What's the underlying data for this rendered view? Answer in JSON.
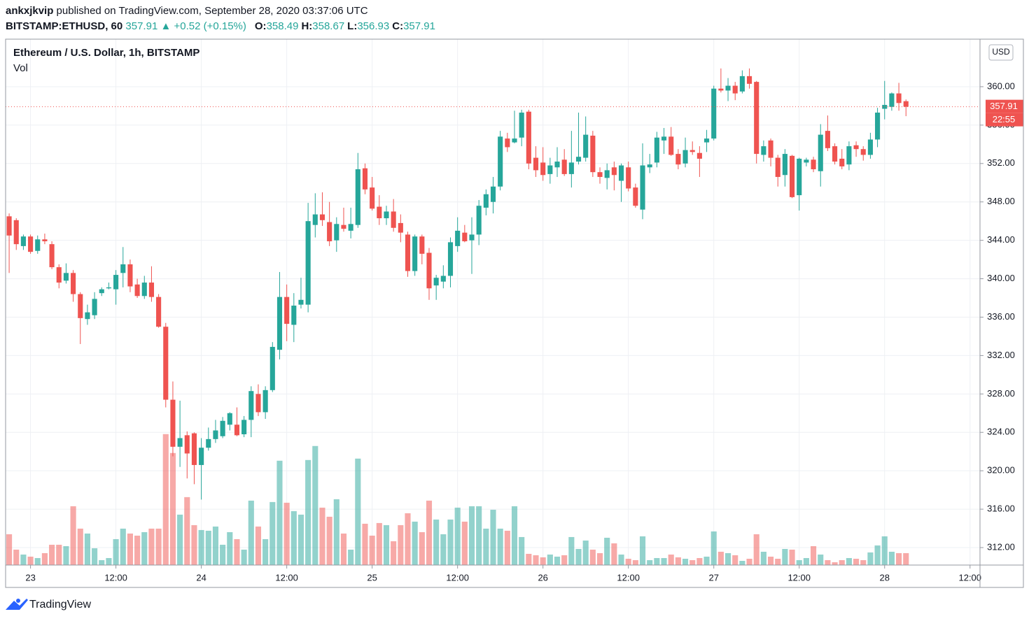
{
  "header": {
    "author": "ankxjkvip",
    "published": "published on TradingView.com, September 28, 2020 03:37:06 UTC",
    "symbol": "BITSTAMP:ETHUSD, 60",
    "last": "357.91",
    "change": "▲ +0.52 (+0.15%)",
    "ohlc": [
      {
        "label": "O:",
        "value": "358.49"
      },
      {
        "label": "H:",
        "value": "358.67"
      },
      {
        "label": "L:",
        "value": "356.93"
      },
      {
        "label": "C:",
        "value": "357.91"
      }
    ]
  },
  "chart_data": {
    "type": "candlestick",
    "title": "Ethereum / U.S. Dollar, 1h, BITSTAMP",
    "volume_label": "Vol",
    "currency": "USD",
    "up_color": "#26a69a",
    "down_color": "#ef5350",
    "grid": true,
    "last_price": 357.91,
    "countdown": "22:55",
    "xlim": [
      -0.5,
      136.4
    ],
    "ylim": [
      310.18,
      364.95
    ],
    "xticks": [
      {
        "value": 3,
        "label": "23"
      },
      {
        "value": 15,
        "label": "12:00"
      },
      {
        "value": 27,
        "label": "24"
      },
      {
        "value": 39,
        "label": "12:00"
      },
      {
        "value": 51,
        "label": "25"
      },
      {
        "value": 63,
        "label": "12:00"
      },
      {
        "value": 75,
        "label": "26"
      },
      {
        "value": 87,
        "label": "12:00"
      },
      {
        "value": 99,
        "label": "27"
      },
      {
        "value": 111,
        "label": "12:00"
      },
      {
        "value": 123,
        "label": "28"
      },
      {
        "value": 135,
        "label": "12:00"
      }
    ],
    "yticks": [
      {
        "value": 312,
        "label": "312.00"
      },
      {
        "value": 316,
        "label": "316.00"
      },
      {
        "value": 320,
        "label": "320.00"
      },
      {
        "value": 324,
        "label": "324.00"
      },
      {
        "value": 328,
        "label": "328.00"
      },
      {
        "value": 332,
        "label": "332.00"
      },
      {
        "value": 336,
        "label": "336.00"
      },
      {
        "value": 340,
        "label": "340.00"
      },
      {
        "value": 344,
        "label": "344.00"
      },
      {
        "value": 348,
        "label": "348.00"
      },
      {
        "value": 352,
        "label": "352.00"
      },
      {
        "value": 356,
        "label": "356.00"
      },
      {
        "value": 360,
        "label": "360.00"
      }
    ],
    "open": [
      346.5,
      346.1,
      343.4,
      344.4,
      342.9,
      344.1,
      343.6,
      341.2,
      339.8,
      340.6,
      338.4,
      335.8,
      336.2,
      338.5,
      339.0,
      338.9,
      340.6,
      341.5,
      339.4,
      338.2,
      339.6,
      338.1,
      335.0,
      327.4,
      322.5,
      323.7,
      323.9,
      320.6,
      322.4,
      323.3,
      323.6,
      324.8,
      324.8,
      323.8,
      325.3,
      328.0,
      326.1,
      328.4,
      332.6,
      338.1,
      335.2,
      337.3,
      337.3,
      345.6,
      346.7,
      345.9,
      344.0,
      345.6,
      345.0,
      345.6,
      351.5,
      349.5,
      347.5,
      346.3,
      347.0,
      345.8,
      344.6,
      340.8,
      344.4,
      342.7,
      339.3,
      339.7,
      340.3,
      343.4,
      344.8,
      344.0,
      344.6,
      347.4,
      348.0,
      349.6,
      354.6,
      354.2,
      354.7,
      357.4,
      352.6,
      352.1,
      350.9,
      351.6,
      352.4,
      350.9,
      352.2,
      352.6,
      354.9,
      351.1,
      350.5,
      351.6,
      350.2,
      351.6,
      349.5,
      347.2,
      351.6,
      352.1,
      354.4,
      354.8,
      353.0,
      352.0,
      353.4,
      353.1,
      354.2,
      354.6,
      359.8,
      359.6,
      360.1,
      359.5,
      361.1,
      360.5,
      352.9,
      354.4,
      352.6,
      350.8,
      352.8,
      348.7,
      352.1,
      352.4,
      351.2,
      355.4,
      353.8,
      352.5,
      351.9,
      353.9,
      353.5,
      352.9,
      354.5,
      357.7,
      357.9,
      359.3,
      358.49
    ],
    "high": [
      346.8,
      346.3,
      344.6,
      344.6,
      344.5,
      344.7,
      343.9,
      341.5,
      341.6,
      340.9,
      338.6,
      337.3,
      338.6,
      339.1,
      339.6,
      340.9,
      343.3,
      342.0,
      340.0,
      340.3,
      341.3,
      338.4,
      335.4,
      329.3,
      327.3,
      324.1,
      324.0,
      323.4,
      324.5,
      325.3,
      325.6,
      326.1,
      326.6,
      325.7,
      328.8,
      329.0,
      328.8,
      333.4,
      340.7,
      339.4,
      338.5,
      340.1,
      347.9,
      348.9,
      349.0,
      348.0,
      346.4,
      347.4,
      347.4,
      353.1,
      352.0,
      350.6,
      348.7,
      347.6,
      348.3,
      346.7,
      344.9,
      344.6,
      344.6,
      343.2,
      340.4,
      341.4,
      344.3,
      346.4,
      345.6,
      346.4,
      348.2,
      349.3,
      350.6,
      355.4,
      355.2,
      357.5,
      357.6,
      357.6,
      353.8,
      353.7,
      352.6,
      353.7,
      353.5,
      355.4,
      357.3,
      356.9,
      355.4,
      351.6,
      352.0,
      352.2,
      352.0,
      352.2,
      349.9,
      354.1,
      353.0,
      355.3,
      355.7,
      355.8,
      353.5,
      354.7,
      354.3,
      353.8,
      355.5,
      360.1,
      361.9,
      360.9,
      360.5,
      361.7,
      361.9,
      360.6,
      354.4,
      354.6,
      352.9,
      353.5,
      352.9,
      352.6,
      352.6,
      352.7,
      356.1,
      357.0,
      354.1,
      353.5,
      354.3,
      354.3,
      353.8,
      355.2,
      357.8,
      360.6,
      359.4,
      360.4,
      358.67
    ],
    "low": [
      340.6,
      343.0,
      343.0,
      342.6,
      342.6,
      343.6,
      341.0,
      339.0,
      339.5,
      337.6,
      333.2,
      335.2,
      335.8,
      338.2,
      338.9,
      337.3,
      339.1,
      338.6,
      338.0,
      337.9,
      337.6,
      334.9,
      326.6,
      321.5,
      320.4,
      319.2,
      318.6,
      317.0,
      322.1,
      322.9,
      323.4,
      324.2,
      323.6,
      323.5,
      323.5,
      325.7,
      325.4,
      328.2,
      331.6,
      333.5,
      333.4,
      336.9,
      336.5,
      344.3,
      345.5,
      343.4,
      342.8,
      344.9,
      344.2,
      345.3,
      348.8,
      347.1,
      345.6,
      345.6,
      344.9,
      343.8,
      340.2,
      340.3,
      341.5,
      337.8,
      337.8,
      339.0,
      339.1,
      342.8,
      343.8,
      340.5,
      343.5,
      346.6,
      346.8,
      349.2,
      353.2,
      354.1,
      353.8,
      351.4,
      350.6,
      350.2,
      349.9,
      350.6,
      350.7,
      349.5,
      351.9,
      352.2,
      350.6,
      349.9,
      349.3,
      349.2,
      348.0,
      349.1,
      347.4,
      346.2,
      351.0,
      351.6,
      353.0,
      352.8,
      351.4,
      351.6,
      352.9,
      350.6,
      353.2,
      354.4,
      359.4,
      358.5,
      358.6,
      359.3,
      359.8,
      352.0,
      352.2,
      351.7,
      349.6,
      349.6,
      348.4,
      347.1,
      351.7,
      351.1,
      349.6,
      353.3,
      351.9,
      351.4,
      351.3,
      352.7,
      352.3,
      352.5,
      353.7,
      356.6,
      357.5,
      357.5,
      356.93
    ],
    "close": [
      344.5,
      343.6,
      344.4,
      342.8,
      344.1,
      343.9,
      341.2,
      339.6,
      340.6,
      338.4,
      335.9,
      336.5,
      337.9,
      338.9,
      339.1,
      340.4,
      341.5,
      339.2,
      338.2,
      339.6,
      338.1,
      335.0,
      327.4,
      322.5,
      323.4,
      321.8,
      320.6,
      322.4,
      323.3,
      324.2,
      325.2,
      326.0,
      323.7,
      325.3,
      328.3,
      326.1,
      328.4,
      332.9,
      338.1,
      335.3,
      337.2,
      337.8,
      346.0,
      346.7,
      346.1,
      343.9,
      345.7,
      345.2,
      345.7,
      351.4,
      349.3,
      347.3,
      346.3,
      347.0,
      345.3,
      344.8,
      340.8,
      344.4,
      342.6,
      339.0,
      340.1,
      340.3,
      343.8,
      345.0,
      343.9,
      344.6,
      347.6,
      348.8,
      349.6,
      354.8,
      353.7,
      354.6,
      357.3,
      352.0,
      351.3,
      350.8,
      351.8,
      352.2,
      350.9,
      352.1,
      352.7,
      355.0,
      351.1,
      350.6,
      351.3,
      350.8,
      351.8,
      349.4,
      347.6,
      351.8,
      351.9,
      354.7,
      354.8,
      352.9,
      351.9,
      353.4,
      353.2,
      352.5,
      354.6,
      359.8,
      359.6,
      360.1,
      359.3,
      361.1,
      360.3,
      353.0,
      353.8,
      352.6,
      350.6,
      353.0,
      348.5,
      352.5,
      352.4,
      351.4,
      355.0,
      353.6,
      352.2,
      351.7,
      353.8,
      353.5,
      352.9,
      354.5,
      357.3,
      358.1,
      359.3,
      358.3,
      357.91
    ],
    "volume": [
      44,
      22,
      15,
      12,
      10,
      17,
      29,
      29,
      27,
      84,
      52,
      45,
      24,
      7,
      10,
      37,
      52,
      45,
      42,
      47,
      52,
      52,
      187,
      160,
      72,
      97,
      57,
      50,
      49,
      55,
      29,
      47,
      37,
      22,
      92,
      55,
      37,
      90,
      149,
      89,
      77,
      72,
      150,
      170,
      82,
      69,
      94,
      45,
      22,
      152,
      59,
      42,
      60,
      57,
      34,
      57,
      74,
      62,
      47,
      92,
      65,
      44,
      65,
      82,
      62,
      84,
      84,
      52,
      79,
      52,
      49,
      84,
      40,
      16,
      14,
      11,
      15,
      12,
      14,
      40,
      23,
      35,
      22,
      17,
      39,
      31,
      15,
      9,
      7,
      41,
      7,
      10,
      10,
      15,
      11,
      9,
      7,
      10,
      12,
      48,
      19,
      17,
      14,
      6,
      9,
      44,
      19,
      12,
      9,
      23,
      22,
      7,
      10,
      27,
      15,
      7,
      4,
      7,
      10,
      9,
      7,
      18,
      28,
      41,
      19,
      17,
      17
    ]
  },
  "footer": {
    "brand": "TradingView"
  }
}
